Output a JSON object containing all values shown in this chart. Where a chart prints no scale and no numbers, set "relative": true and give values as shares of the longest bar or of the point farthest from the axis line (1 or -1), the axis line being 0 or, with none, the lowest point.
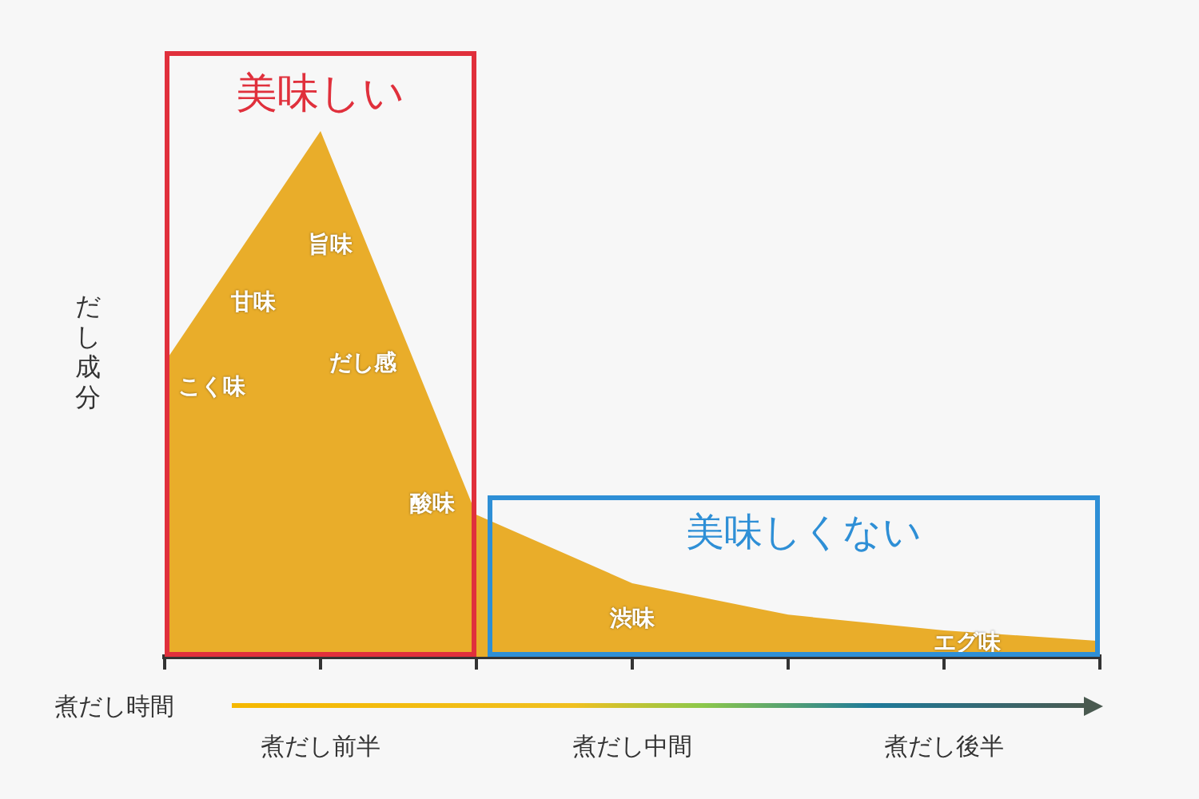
{
  "chart_data": {
    "type": "area",
    "relative": true,
    "ylabel": "だし成分",
    "xlabel": "煮だし時間",
    "categories": [
      null,
      "煮だし前半",
      null,
      "煮だし中間",
      null,
      "煮だし後半",
      null
    ],
    "values": [
      0.56,
      1,
      0.27,
      0.14,
      0.08,
      0.05,
      0.03
    ],
    "color": "#e9ad2a",
    "annotations": [
      "美味しい",
      "美味しくない",
      "こく味",
      "甘味",
      "旨味",
      "だし感",
      "酸味",
      "渋味",
      "エグ味"
    ],
    "grid": false,
    "legend": false
  }
}
